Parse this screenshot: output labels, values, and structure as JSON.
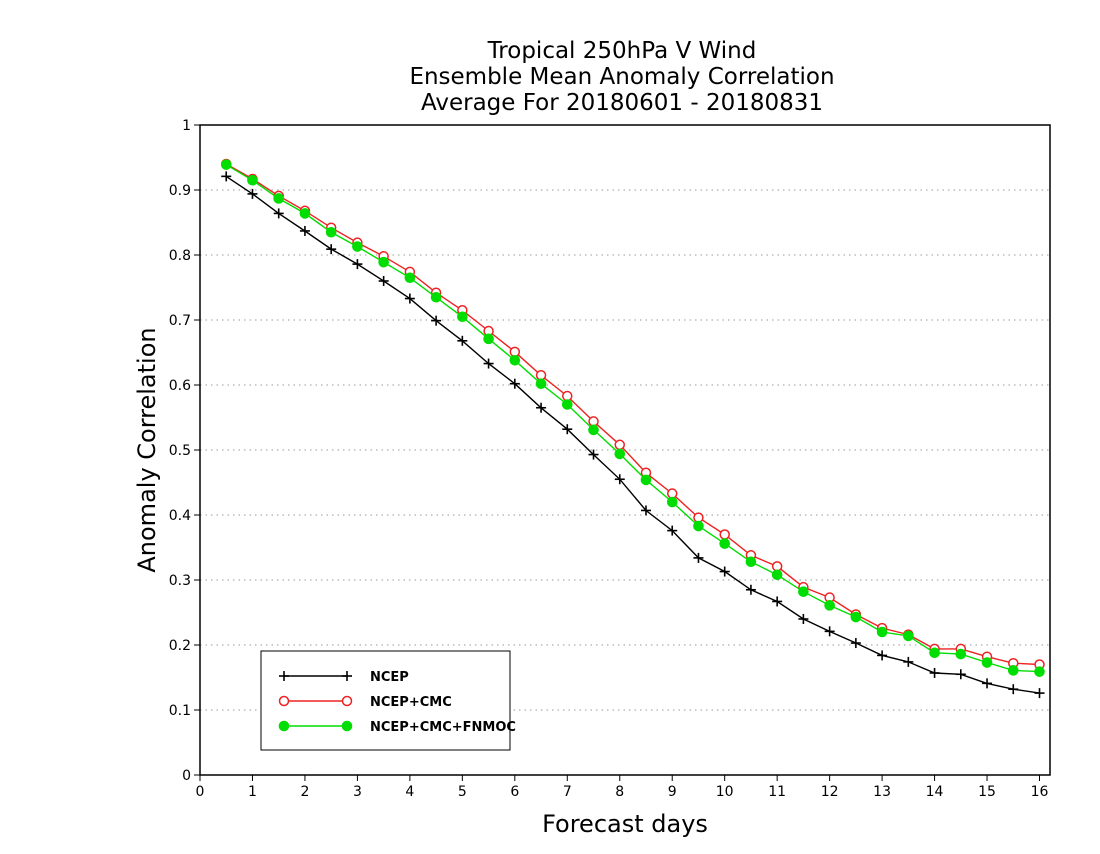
{
  "chart_data": {
    "type": "line",
    "title": [
      "Tropical 250hPa V Wind",
      "Ensemble Mean Anomaly Correlation",
      "Average For 20180601 - 20180831"
    ],
    "xlabel": "Forecast days",
    "ylabel": "Anomaly Correlation",
    "xlim": [
      0,
      16.2
    ],
    "ylim": [
      0,
      1
    ],
    "xticks": [
      "0",
      "1",
      "2",
      "3",
      "4",
      "5",
      "6",
      "7",
      "8",
      "9",
      "10",
      "11",
      "12",
      "13",
      "14",
      "15",
      "16"
    ],
    "yticks": [
      "0",
      "0.1",
      "0.2",
      "0.3",
      "0.4",
      "0.5",
      "0.6",
      "0.7",
      "0.8",
      "0.9",
      "1"
    ],
    "grid": "horizontal dotted",
    "legend_position": "bottom-left",
    "x": [
      0.5,
      1,
      1.5,
      2,
      2.5,
      3,
      3.5,
      4,
      4.5,
      5,
      5.5,
      6,
      6.5,
      7,
      7.5,
      8,
      8.5,
      9,
      9.5,
      10,
      10.5,
      11,
      11.5,
      12,
      12.5,
      13,
      13.5,
      14,
      14.5,
      15,
      15.5,
      16
    ],
    "series": [
      {
        "name": "NCEP",
        "color": "#000000",
        "marker": "plus",
        "values": [
          0.921,
          0.894,
          0.864,
          0.837,
          0.809,
          0.786,
          0.76,
          0.733,
          0.699,
          0.668,
          0.633,
          0.602,
          0.565,
          0.532,
          0.493,
          0.455,
          0.407,
          0.376,
          0.334,
          0.313,
          0.285,
          0.267,
          0.24,
          0.221,
          0.203,
          0.184,
          0.174,
          0.157,
          0.155,
          0.141,
          0.132,
          0.126
        ]
      },
      {
        "name": "NCEP+CMC",
        "color": "#ee2222",
        "marker": "open-circle",
        "values": [
          0.94,
          0.917,
          0.891,
          0.868,
          0.842,
          0.819,
          0.798,
          0.774,
          0.742,
          0.715,
          0.683,
          0.651,
          0.615,
          0.583,
          0.544,
          0.508,
          0.465,
          0.433,
          0.396,
          0.37,
          0.338,
          0.321,
          0.289,
          0.273,
          0.247,
          0.226,
          0.216,
          0.194,
          0.194,
          0.182,
          0.172,
          0.17
        ]
      },
      {
        "name": "NCEP+CMC+FNMOC",
        "color": "#00dd00",
        "marker": "filled-circle",
        "values": [
          0.939,
          0.915,
          0.887,
          0.864,
          0.835,
          0.813,
          0.789,
          0.765,
          0.735,
          0.705,
          0.671,
          0.638,
          0.602,
          0.57,
          0.531,
          0.494,
          0.454,
          0.42,
          0.383,
          0.356,
          0.328,
          0.308,
          0.282,
          0.261,
          0.243,
          0.22,
          0.214,
          0.188,
          0.186,
          0.173,
          0.161,
          0.159
        ]
      }
    ]
  }
}
